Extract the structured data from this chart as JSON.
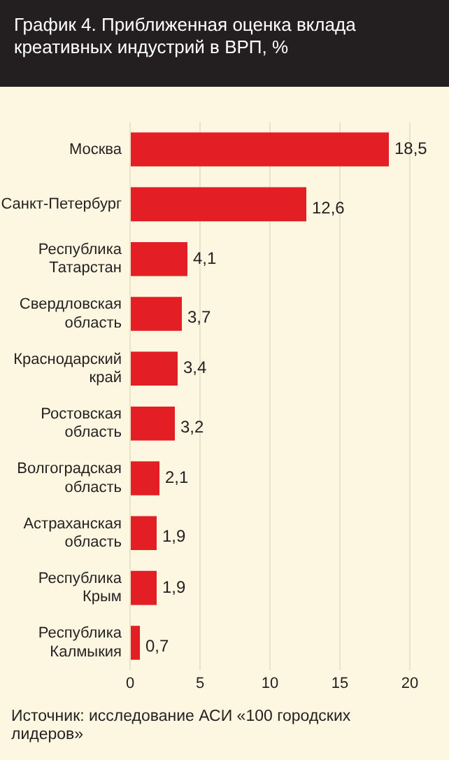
{
  "chart_data": {
    "type": "bar",
    "orientation": "horizontal",
    "title": "График 4. Приближенная оценка вклада креативных индустрий в ВРП, %",
    "categories": [
      "Москва",
      "Санкт-Петербург",
      "Республика Татарстан",
      "Свердловская область",
      "Краснодарский край",
      "Ростовская область",
      "Волгоградская область",
      "Астраханская область",
      "Республика Крым",
      "Республика Калмыкия"
    ],
    "values": [
      18.5,
      12.6,
      4.1,
      3.7,
      3.4,
      3.2,
      2.1,
      1.9,
      1.9,
      0.7
    ],
    "value_labels": [
      "18,5",
      "12,6",
      "4,1",
      "3,7",
      "3,4",
      "3,2",
      "2,1",
      "1,9",
      "1,9",
      "0,7"
    ],
    "color": "#e31e24",
    "xlim": [
      0,
      20
    ],
    "xticks": [
      0,
      5,
      10,
      15,
      20
    ],
    "grid": "x",
    "annotations": [
      "Источник: исследование АСИ «100 городских лидеров»"
    ]
  }
}
